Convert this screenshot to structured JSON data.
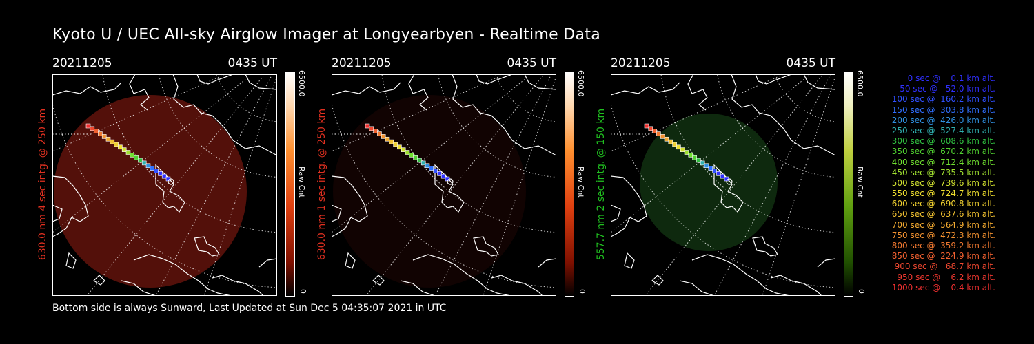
{
  "title": "Kyoto U / UEC All-sky Airglow Imager at Longyearbyen - Realtime Data",
  "footer": "Bottom side is always Sunward, Last Updated at Sun Dec  5 04:35:07 2021 in UTC",
  "colors": {
    "red_glow": "#8a1a10",
    "green_glow": "#1f5a1f",
    "side_red": "#e03020",
    "side_green": "#20c020"
  },
  "panels": [
    {
      "date": "20211205",
      "time": "0435 UT",
      "side_label": "630.0 nm 4 sec intg. @ 250 km",
      "cbar_max": "6500.0",
      "cbar_unit": "Raw Cnt",
      "cbar_min": "0",
      "glow": "red",
      "glow_level": 0.6
    },
    {
      "date": "20211205",
      "time": "0435 UT",
      "side_label": "630.0 nm 1 sec intg. @ 250 km",
      "cbar_max": "6500.0",
      "cbar_unit": "Raw Cnt",
      "cbar_min": "0",
      "glow": "red",
      "glow_level": 0.12
    },
    {
      "date": "20211205",
      "time": "0435 UT",
      "side_label": "557.7 nm 2 sec intg. @ 150 km",
      "cbar_max": "6500.0",
      "cbar_unit": "Raw Cnt",
      "cbar_min": "0",
      "glow": "green",
      "glow_level": 0.45
    }
  ],
  "legend": [
    {
      "text": "   0 sec @    0.1 km alt.",
      "color": "#3030ff"
    },
    {
      "text": "  50 sec @   52.0 km alt.",
      "color": "#3030ff"
    },
    {
      "text": " 100 sec @  160.2 km alt.",
      "color": "#3050ff"
    },
    {
      "text": " 150 sec @  303.8 km alt.",
      "color": "#3070ff"
    },
    {
      "text": " 200 sec @  426.0 km alt.",
      "color": "#3090e0"
    },
    {
      "text": " 250 sec @  527.4 km alt.",
      "color": "#30b0b0"
    },
    {
      "text": " 300 sec @  608.6 km alt.",
      "color": "#30c040"
    },
    {
      "text": " 350 sec @  670.2 km alt.",
      "color": "#50d030"
    },
    {
      "text": " 400 sec @  712.4 km alt.",
      "color": "#70e030"
    },
    {
      "text": " 450 sec @  735.5 km alt.",
      "color": "#a0e030"
    },
    {
      "text": " 500 sec @  739.6 km alt.",
      "color": "#d0e030"
    },
    {
      "text": " 550 sec @  724.7 km alt.",
      "color": "#f0e030"
    },
    {
      "text": " 600 sec @  690.8 km alt.",
      "color": "#f0d030"
    },
    {
      "text": " 650 sec @  637.6 km alt.",
      "color": "#f0c030"
    },
    {
      "text": " 700 sec @  564.9 km alt.",
      "color": "#f0a830"
    },
    {
      "text": " 750 sec @  472.3 km alt.",
      "color": "#f09030"
    },
    {
      "text": " 800 sec @  359.2 km alt.",
      "color": "#f07830"
    },
    {
      "text": " 850 sec @  224.9 km alt.",
      "color": "#f06030"
    },
    {
      "text": " 900 sec @   68.7 km alt.",
      "color": "#f04830"
    },
    {
      "text": " 950 sec @    6.2 km alt.",
      "color": "#f03830"
    },
    {
      "text": "1000 sec @    0.4 km alt.",
      "color": "#f03030"
    }
  ]
}
